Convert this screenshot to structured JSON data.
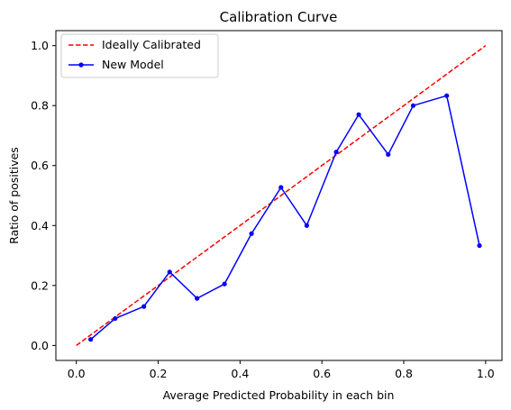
{
  "chart_data": {
    "type": "line",
    "title": "Calibration Curve",
    "xlabel": "Average Predicted Probability in each bin",
    "ylabel": "Ratio of positives",
    "xlim": [
      -0.05,
      1.04
    ],
    "ylim": [
      -0.05,
      1.05
    ],
    "x_ticks": [
      "0.0",
      "0.2",
      "0.4",
      "0.6",
      "0.8",
      "1.0"
    ],
    "y_ticks": [
      "0.0",
      "0.2",
      "0.4",
      "0.6",
      "0.8",
      "1.0"
    ],
    "grid": false,
    "legend_position": "top-left",
    "series": [
      {
        "name": "Ideally Calibrated",
        "style": "dashed",
        "color": "#ff0000",
        "x": [
          0.0,
          1.0
        ],
        "y": [
          0.0,
          1.0
        ]
      },
      {
        "name": "New Model",
        "style": "solid-marker",
        "color": "#0000ff",
        "x": [
          0.035,
          0.095,
          0.165,
          0.228,
          0.295,
          0.362,
          0.428,
          0.5,
          0.563,
          0.635,
          0.69,
          0.762,
          0.823,
          0.905,
          0.985
        ],
        "y": [
          0.02,
          0.09,
          0.13,
          0.245,
          0.157,
          0.205,
          0.373,
          0.527,
          0.4,
          0.645,
          0.77,
          0.637,
          0.8,
          0.833,
          0.333
        ]
      }
    ]
  }
}
